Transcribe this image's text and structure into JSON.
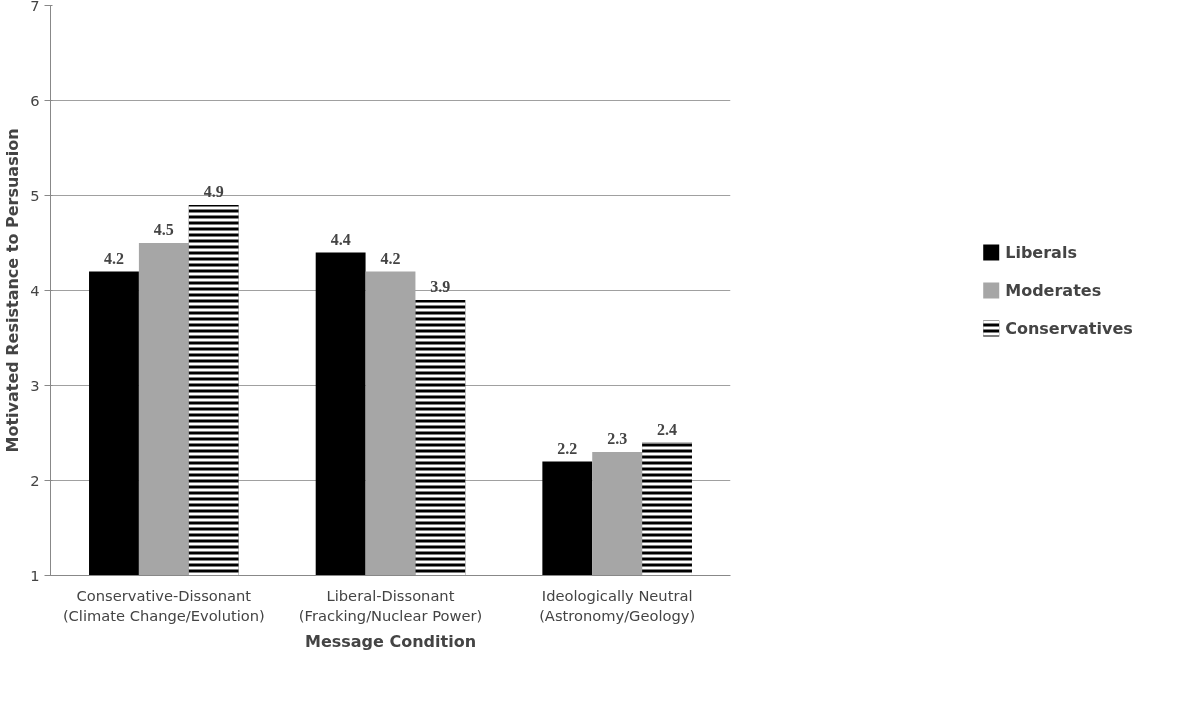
{
  "chart_data": {
    "type": "bar",
    "xlabel": "Message Condition",
    "ylabel": "Motivated Resistance to Persuasion",
    "categories": [
      "Conservative-Dissonant\n(Climate Change/Evolution)",
      "Liberal-Dissonant\n(Fracking/Nuclear Power)",
      "Ideologically Neutral\n(Astronomy/Geology)"
    ],
    "series": [
      {
        "name": "Liberals",
        "color": "#000000",
        "values": [
          4.2,
          4.4,
          2.2
        ]
      },
      {
        "name": "Moderates",
        "color": "#a6a6a6",
        "values": [
          4.5,
          4.2,
          2.3
        ]
      },
      {
        "name": "Conservatives",
        "color": "#000000",
        "values": [
          4.9,
          3.9,
          2.4
        ]
      }
    ],
    "ylim": [
      1,
      7
    ],
    "yticks": [
      1,
      2,
      3,
      4,
      5,
      6,
      7
    ],
    "grid": "y",
    "legend": "right",
    "data_labels": true
  }
}
